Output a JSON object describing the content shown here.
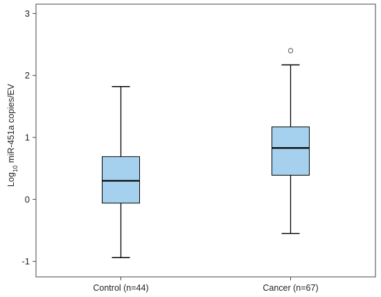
{
  "chart_data": {
    "type": "boxplot",
    "ylabel": {
      "prefix": "Log",
      "subscript": "10",
      "rest": " miR-451a copies/EV"
    },
    "ylim": [
      -1.25,
      3.15
    ],
    "yticks": [
      "-1",
      "0",
      "1",
      "2",
      "3"
    ],
    "grid": false,
    "colors": {
      "box_fill": "#a6d1ee",
      "stroke": "#000000",
      "frame": "#444444"
    },
    "groups": [
      {
        "label": "Control (n=44)",
        "whisker_low": -0.94,
        "q1": -0.06,
        "median": 0.3,
        "q3": 0.69,
        "whisker_high": 1.82,
        "outliers": []
      },
      {
        "label": "Cancer (n=67)",
        "whisker_low": -0.55,
        "q1": 0.39,
        "median": 0.83,
        "q3": 1.17,
        "whisker_high": 2.17,
        "outliers": [
          2.4
        ]
      }
    ]
  }
}
